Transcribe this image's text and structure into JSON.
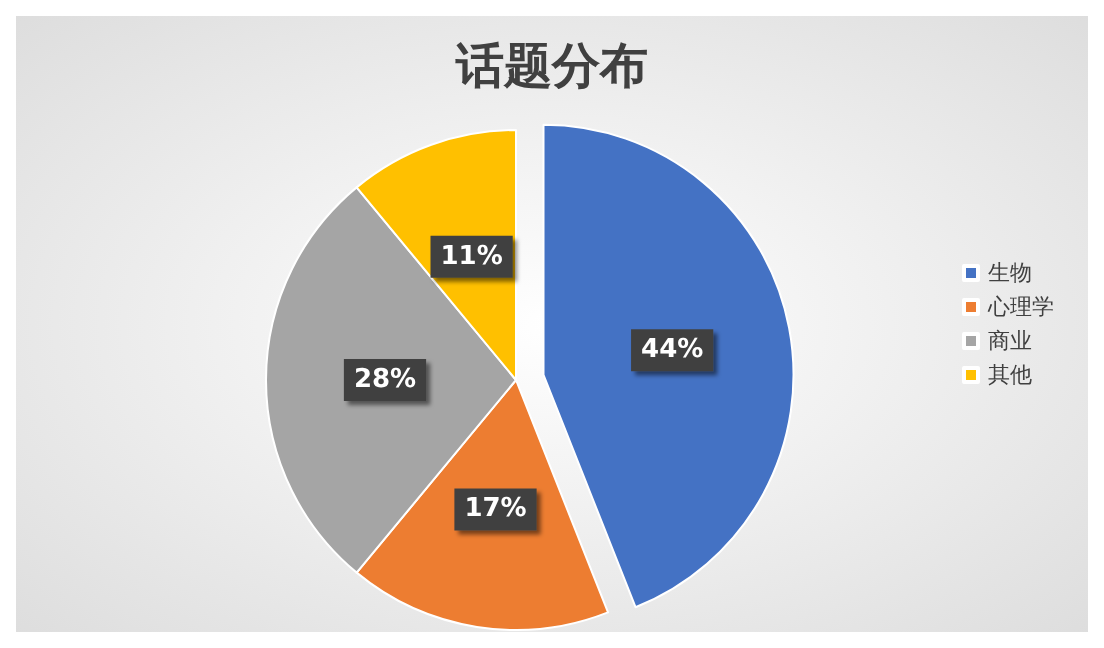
{
  "chart_data": {
    "type": "pie",
    "title": "话题分布",
    "categories": [
      "生物",
      "心理学",
      "商业",
      "其他"
    ],
    "values": [
      44,
      17,
      28,
      11
    ],
    "colors": [
      "#4472c4",
      "#ed7d31",
      "#a5a5a5",
      "#ffc000"
    ],
    "value_labels": [
      "44%",
      "17%",
      "28%",
      "11%"
    ],
    "legend": "right"
  }
}
